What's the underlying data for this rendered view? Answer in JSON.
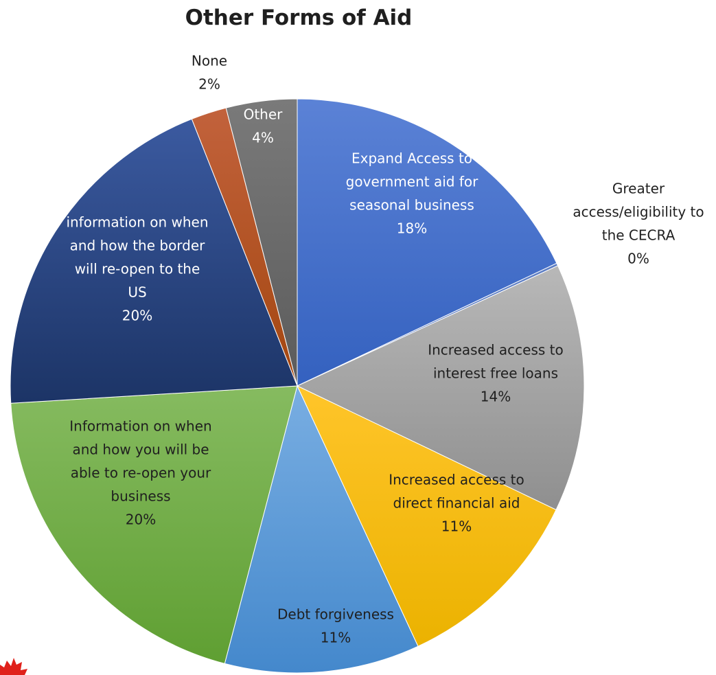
{
  "chart_data": {
    "type": "pie",
    "title": "Other Forms of Aid",
    "series": [
      {
        "values": [
          18,
          0,
          14,
          11,
          11,
          20,
          20,
          2,
          4
        ]
      }
    ],
    "slices": [
      {
        "label_lines": [
          "Expand Access to",
          "government aid for",
          "seasonal business"
        ],
        "pct_label": "18%",
        "value": 18,
        "color_a": "#5b82d6",
        "color_b": "#3461bf",
        "label_color": "#ffffff"
      },
      {
        "label_lines": [
          "Greater",
          "access/eligibility to",
          "the CECRA"
        ],
        "pct_label": "0%",
        "value": 0.15,
        "color_a": "#5f7fc4",
        "color_b": "#5f7fc4",
        "label_color": "#1f1f1f"
      },
      {
        "label_lines": [
          "Increased access to",
          "interest free loans"
        ],
        "pct_label": "14%",
        "value": 14,
        "color_a": "#b8b8b8",
        "color_b": "#8f8f8f",
        "label_color": "#1f1f1f"
      },
      {
        "label_lines": [
          "Increased access to",
          "direct financial aid"
        ],
        "pct_label": "11%",
        "value": 11,
        "color_a": "#ffc52a",
        "color_b": "#ebb200",
        "label_color": "#1f1f1f"
      },
      {
        "label_lines": [
          "Debt forgiveness"
        ],
        "pct_label": "11%",
        "value": 11,
        "color_a": "#79aee2",
        "color_b": "#4488cc",
        "label_color": "#1f1f1f"
      },
      {
        "label_lines": [
          "Information on when",
          "and how you will be",
          "able to re-open your",
          "business"
        ],
        "pct_label": "20%",
        "value": 20,
        "color_a": "#86bb60",
        "color_b": "#5f9f32",
        "label_color": "#1f1f1f"
      },
      {
        "label_lines": [
          "information on when",
          "and how the border",
          "will re-open to the",
          "US"
        ],
        "pct_label": "20%",
        "value": 20,
        "color_a": "#3b5aa0",
        "color_b": "#1c3466",
        "label_color": "#ffffff"
      },
      {
        "label_lines": [
          "None"
        ],
        "pct_label": "2%",
        "value": 2,
        "color_a": "#c2623c",
        "color_b": "#a3460f",
        "label_color": "#1f1f1f"
      },
      {
        "label_lines": [
          "Other"
        ],
        "pct_label": "4%",
        "value": 4,
        "color_a": "#7a7a7a",
        "color_b": "#5b5b5b",
        "label_color": "#ffffff"
      }
    ],
    "start_angle_deg": 0,
    "direction": "clockwise",
    "legend": "none",
    "decoration": "maple-leaf"
  }
}
